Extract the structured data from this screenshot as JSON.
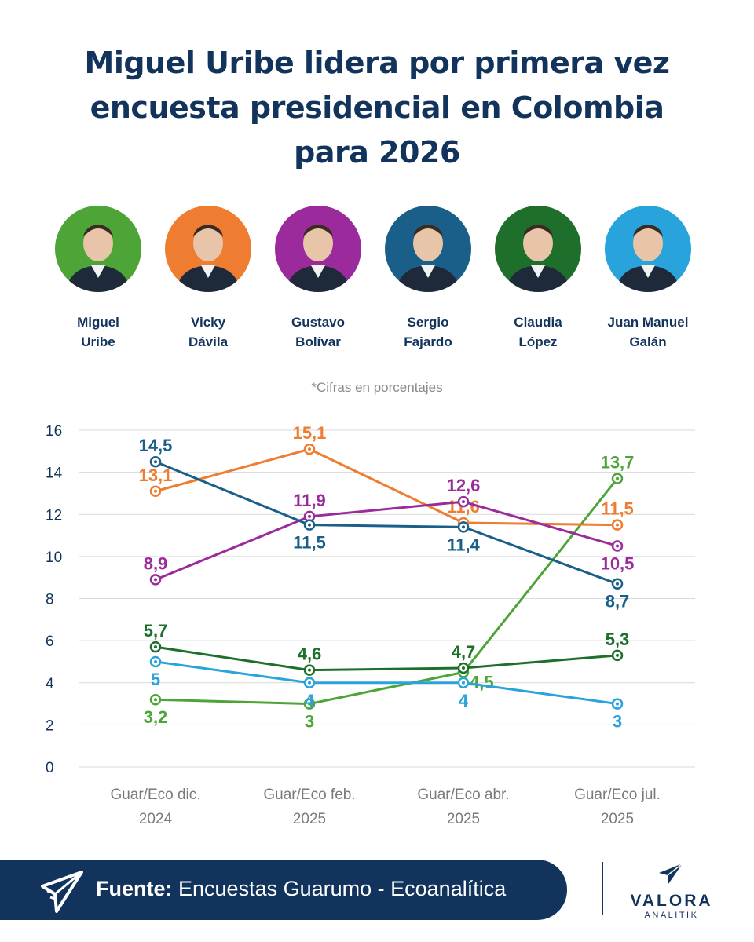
{
  "header": {
    "title_lines": [
      "Miguel Uribe lidera por primera vez",
      "encuesta presidencial en Colombia",
      "para 2026"
    ]
  },
  "candidates": [
    {
      "line1": "Miguel",
      "line2": "Uribe",
      "color": "#4da537",
      "icon": "person-photo"
    },
    {
      "line1": "Vicky",
      "line2": "Dávila",
      "color": "#ee7d31",
      "icon": "person-photo"
    },
    {
      "line1": "Gustavo",
      "line2": "Bolívar",
      "color": "#9b2b9c",
      "icon": "person-photo"
    },
    {
      "line1": "Sergio",
      "line2": "Fajardo",
      "color": "#1a5f8a",
      "icon": "person-photo"
    },
    {
      "line1": "Claudia",
      "line2": "López",
      "color": "#1f6f2c",
      "icon": "person-photo"
    },
    {
      "line1": "Juan Manuel",
      "line2": "Galán",
      "color": "#29a3dc",
      "icon": "person-photo"
    }
  ],
  "note": "*Cifras en porcentajes",
  "chart_data": {
    "type": "line",
    "title": "Miguel Uribe lidera por primera vez encuesta presidencial en Colombia para 2026",
    "ylabel": "%",
    "ylim": [
      0,
      16
    ],
    "yticks": [
      "0",
      "2",
      "4",
      "6",
      "8",
      "10",
      "12",
      "14",
      "16"
    ],
    "categories": [
      [
        "Guar/Eco dic.",
        "2024"
      ],
      [
        "Guar/Eco feb.",
        "2025"
      ],
      [
        "Guar/Eco abr.",
        "2025"
      ],
      [
        "Guar/Eco jul.",
        "2025"
      ]
    ],
    "series": [
      {
        "name": "Miguel Uribe",
        "color": "#4da537",
        "values": [
          3.2,
          3,
          4.5,
          13.7
        ],
        "labels": [
          "3,2",
          "3",
          "4,5",
          "13,7"
        ],
        "label_pos": [
          "below",
          "below",
          "right",
          "above"
        ]
      },
      {
        "name": "Vicky Dávila",
        "color": "#ee7d31",
        "values": [
          13.1,
          15.1,
          11.6,
          11.5
        ],
        "labels": [
          "13,1",
          "15,1",
          "11,6",
          "11,5"
        ],
        "label_pos": [
          "above",
          "above",
          "above",
          "above"
        ]
      },
      {
        "name": "Gustavo Bolívar",
        "color": "#9b2b9c",
        "values": [
          8.9,
          11.9,
          12.6,
          10.5
        ],
        "labels": [
          "8,9",
          "11,9",
          "12,6",
          "10,5"
        ],
        "label_pos": [
          "above",
          "above",
          "above",
          "below"
        ]
      },
      {
        "name": "Sergio Fajardo",
        "color": "#1a5f8a",
        "values": [
          14.5,
          11.5,
          11.4,
          8.7
        ],
        "labels": [
          "14,5",
          "11,5",
          "11,4",
          "8,7"
        ],
        "label_pos": [
          "above",
          "below",
          "below",
          "below"
        ]
      },
      {
        "name": "Claudia López",
        "color": "#1f6f2c",
        "values": [
          5.7,
          4.6,
          4.7,
          5.3
        ],
        "labels": [
          "5,7",
          "4,6",
          "4,7",
          "5,3"
        ],
        "label_pos": [
          "above",
          "above",
          "above",
          "above"
        ]
      },
      {
        "name": "Juan Manuel Galán",
        "color": "#29a3dc",
        "values": [
          5,
          4,
          4,
          3
        ],
        "labels": [
          "5",
          "4",
          "4",
          "3"
        ],
        "label_pos": [
          "below",
          "below",
          "below",
          "below"
        ]
      }
    ],
    "grid": true,
    "legend": "candidate photos above chart"
  },
  "footer": {
    "source_label": "Fuente:",
    "source_text": "Encuestas Guarumo - Ecoanalítica",
    "logo_icon": "paper-plane-logo-icon"
  },
  "brand": {
    "name": "VALORA",
    "sub": "ANALITIK",
    "color": "#12335c"
  }
}
